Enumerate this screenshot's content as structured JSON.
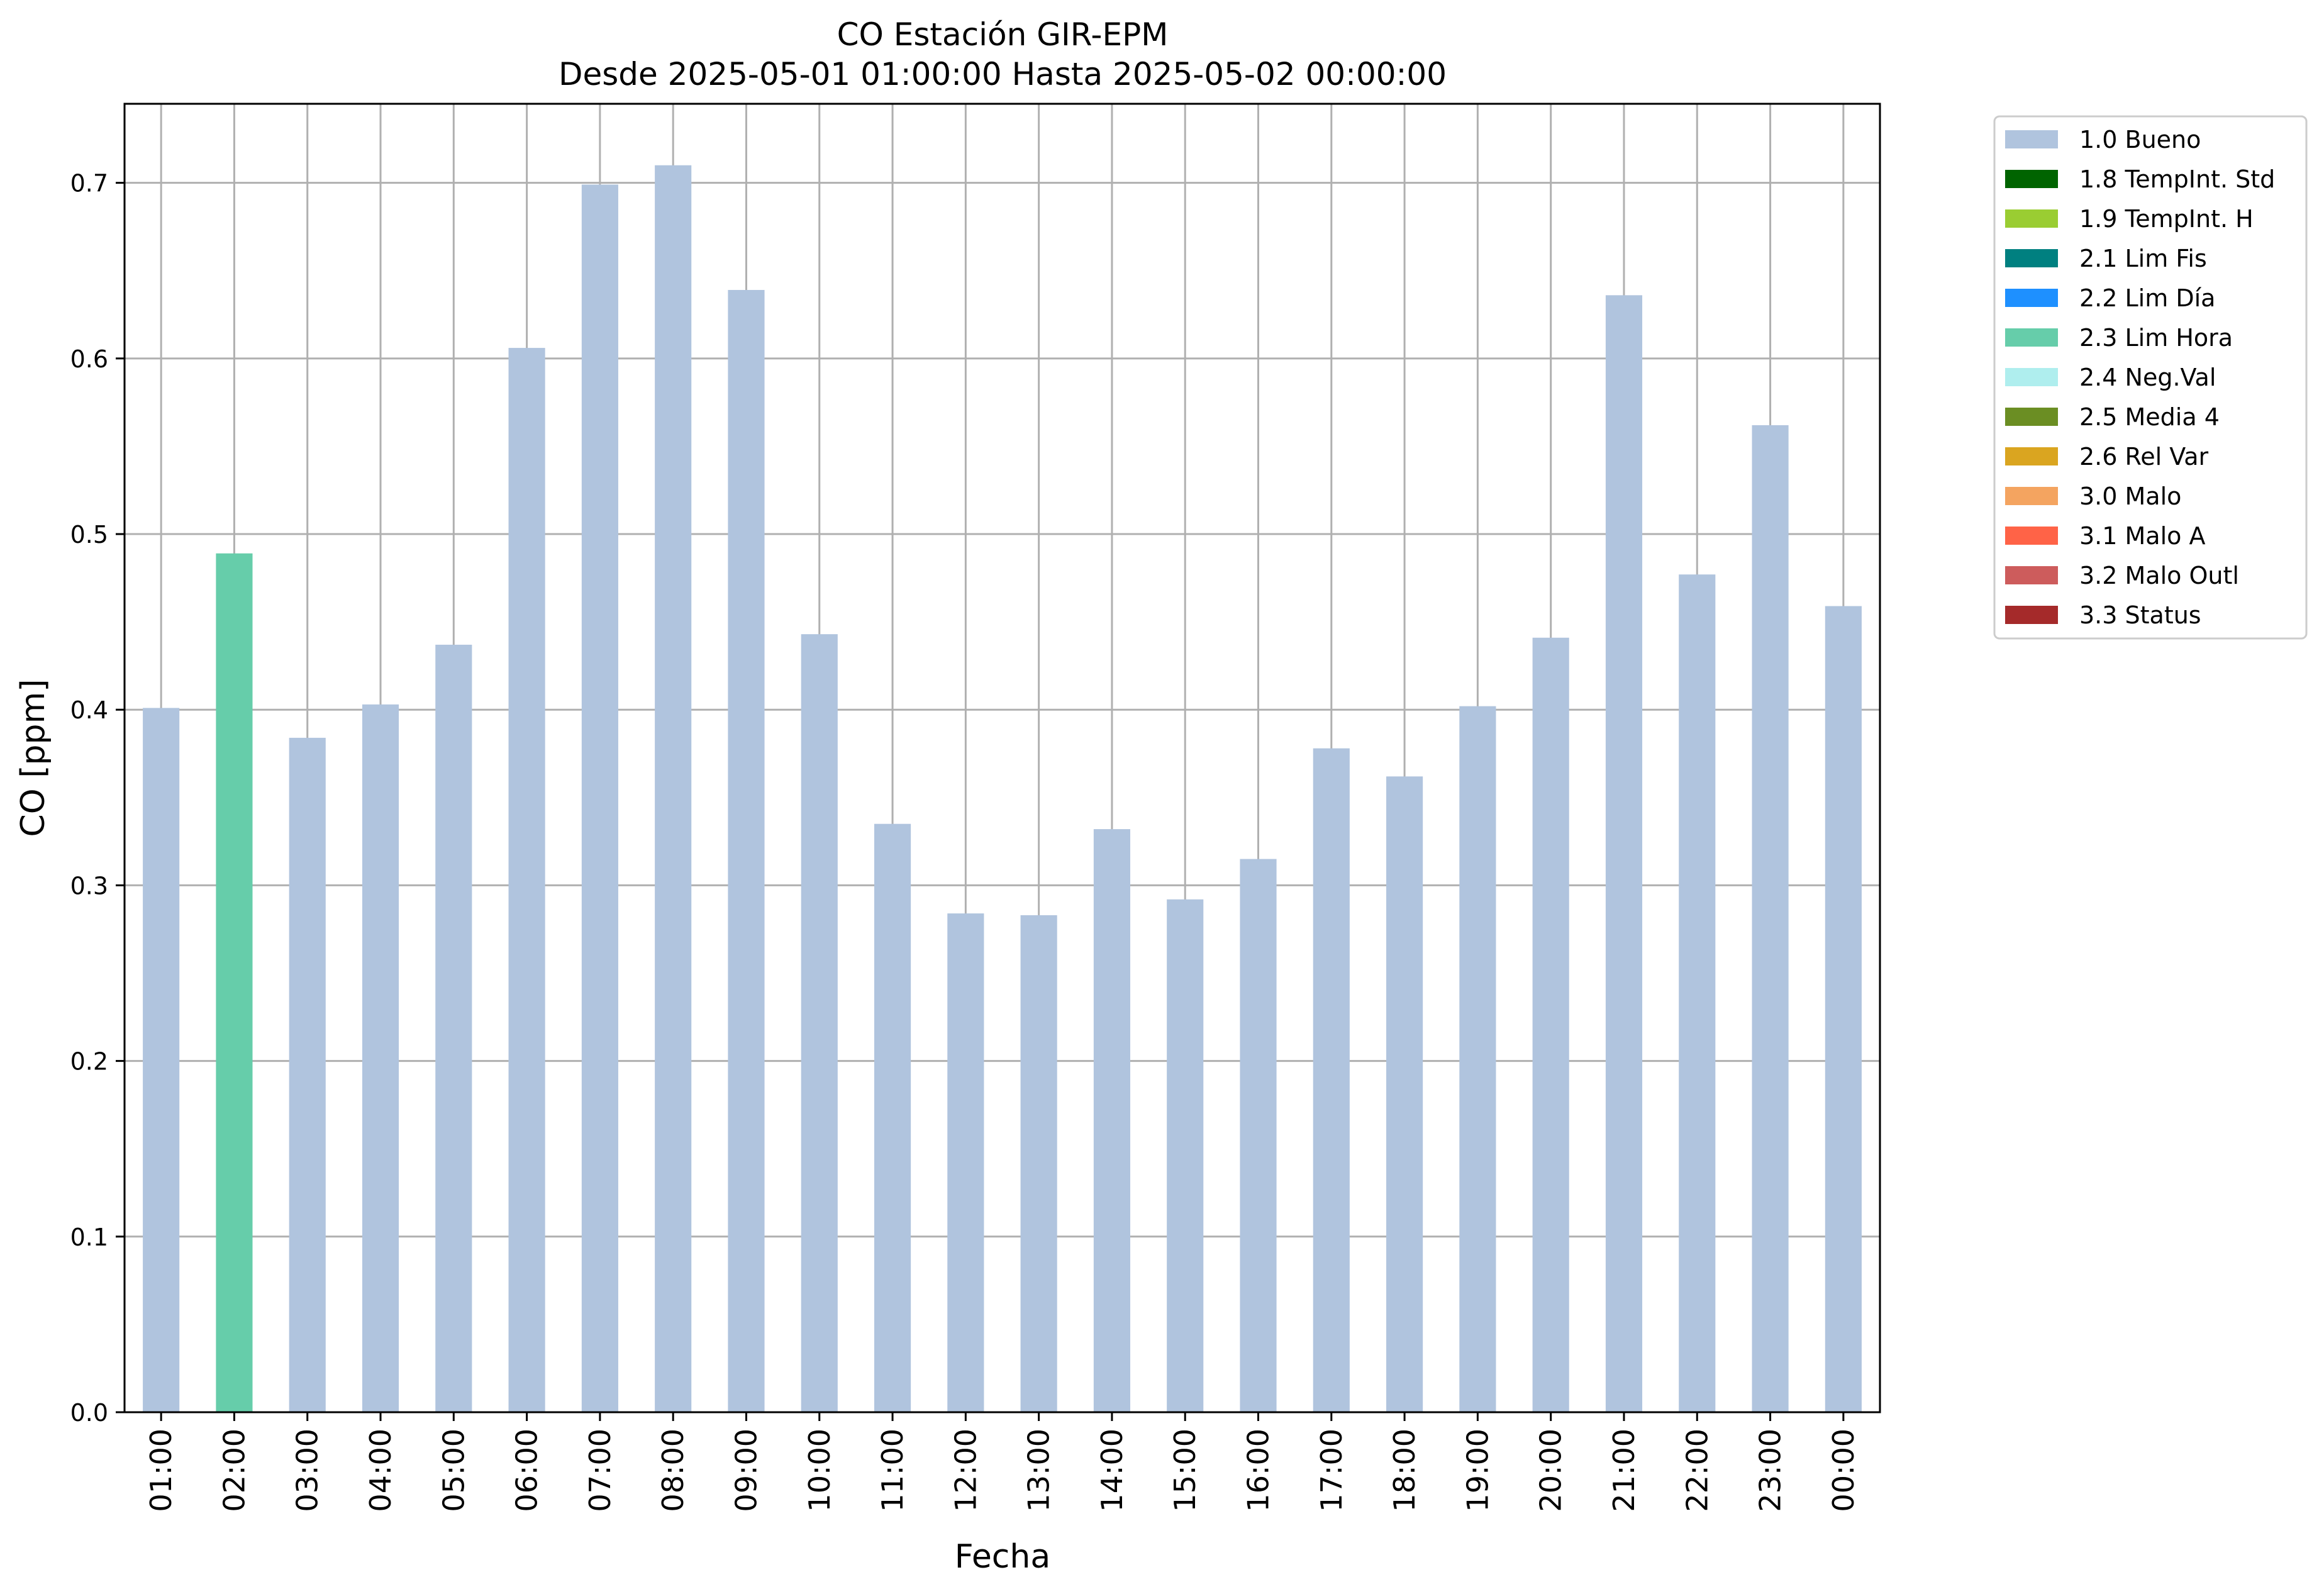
{
  "chart_data": {
    "type": "bar",
    "title": "CO Estación GIR-EPM",
    "subtitle": "Desde 2025-05-01 01:00:00 Hasta 2025-05-02 00:00:00",
    "xlabel": "Fecha",
    "ylabel": "CO [ppm]",
    "ylim": [
      0,
      0.745
    ],
    "yticks": [
      "0.0",
      "0.1",
      "0.2",
      "0.3",
      "0.4",
      "0.5",
      "0.6",
      "0.7"
    ],
    "grid": true,
    "legend_position": "outside-top-right",
    "categories": [
      "01:00",
      "02:00",
      "03:00",
      "04:00",
      "05:00",
      "06:00",
      "07:00",
      "08:00",
      "09:00",
      "10:00",
      "11:00",
      "12:00",
      "13:00",
      "14:00",
      "15:00",
      "16:00",
      "17:00",
      "18:00",
      "19:00",
      "20:00",
      "21:00",
      "22:00",
      "23:00",
      "00:00"
    ],
    "values": [
      0.401,
      0.489,
      0.384,
      0.403,
      0.437,
      0.606,
      0.699,
      0.71,
      0.639,
      0.443,
      0.335,
      0.284,
      0.283,
      0.332,
      0.292,
      0.315,
      0.378,
      0.362,
      0.402,
      0.441,
      0.636,
      0.477,
      0.562,
      0.459
    ],
    "flags": [
      "2.3 Lim Hora"
    ],
    "bar_flags": [
      "1.0 Bueno",
      "2.3 Lim Hora",
      "1.0 Bueno",
      "1.0 Bueno",
      "1.0 Bueno",
      "1.0 Bueno",
      "1.0 Bueno",
      "1.0 Bueno",
      "1.0 Bueno",
      "1.0 Bueno",
      "1.0 Bueno",
      "1.0 Bueno",
      "1.0 Bueno",
      "1.0 Bueno",
      "1.0 Bueno",
      "1.0 Bueno",
      "1.0 Bueno",
      "1.0 Bueno",
      "1.0 Bueno",
      "1.0 Bueno",
      "1.0 Bueno",
      "1.0 Bueno",
      "1.0 Bueno",
      "1.0 Bueno"
    ],
    "legend": [
      {
        "name": "1.0 Bueno",
        "color": "#b0c4de"
      },
      {
        "name": "1.8 TempInt. Std",
        "color": "#006400"
      },
      {
        "name": "1.9 TempInt. H",
        "color": "#9acd32"
      },
      {
        "name": "2.1 Lim Fis",
        "color": "#008080"
      },
      {
        "name": "2.2 Lim Día",
        "color": "#1e90ff"
      },
      {
        "name": "2.3 Lim Hora",
        "color": "#66cdaa"
      },
      {
        "name": "2.4 Neg.Val",
        "color": "#afeeee"
      },
      {
        "name": "2.5 Media 4",
        "color": "#6b8e23"
      },
      {
        "name": "2.6 Rel Var",
        "color": "#daa520"
      },
      {
        "name": "3.0 Malo",
        "color": "#f4a460"
      },
      {
        "name": "3.1 Malo A",
        "color": "#ff6347"
      },
      {
        "name": "3.2 Malo Outl",
        "color": "#cd5c5c"
      },
      {
        "name": "3.3 Status",
        "color": "#a52a2a"
      }
    ],
    "colors": {
      "grid": "#b0b0b0",
      "axes": "#000000"
    }
  }
}
